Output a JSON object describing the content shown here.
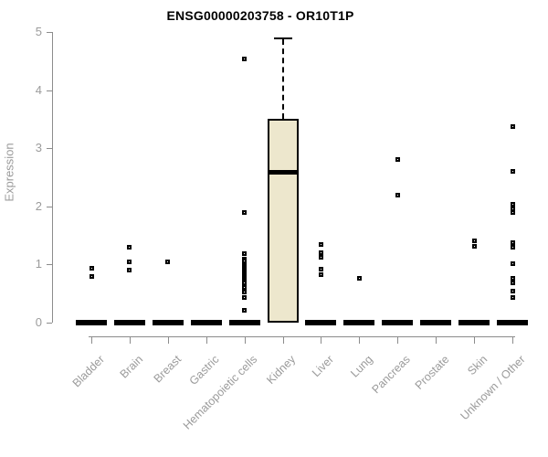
{
  "header": {
    "title": "ENSG00000203758 - OR10T1P"
  },
  "chart_data": {
    "type": "boxplot",
    "title": "ENSG00000203758 - OR10T1P",
    "xlabel": "",
    "ylabel": "Expression",
    "ylim": [
      0,
      5
    ],
    "yticks": [
      0,
      1,
      2,
      3,
      4,
      5
    ],
    "grid": false,
    "legend": "none",
    "categories": [
      "Bladder",
      "Brain",
      "Breast",
      "Gastric",
      "Hematopoietic cells",
      "Kidney",
      "Liver",
      "Lung",
      "Pancreas",
      "Prostate",
      "Skin",
      "Unknown / Other"
    ],
    "boxes": [
      {
        "category": "Bladder",
        "whisker_low": 0,
        "q1": 0,
        "median": 0,
        "q3": 0,
        "whisker_high": 0,
        "outliers": [
          0.94,
          0.79
        ]
      },
      {
        "category": "Brain",
        "whisker_low": 0,
        "q1": 0,
        "median": 0,
        "q3": 0,
        "whisker_high": 0,
        "outliers": [
          1.29,
          1.04,
          0.91
        ]
      },
      {
        "category": "Breast",
        "whisker_low": 0,
        "q1": 0,
        "median": 0,
        "q3": 0,
        "whisker_high": 0,
        "outliers": [
          1.04
        ]
      },
      {
        "category": "Gastric",
        "whisker_low": 0,
        "q1": 0,
        "median": 0,
        "q3": 0,
        "whisker_high": 0,
        "outliers": []
      },
      {
        "category": "Hematopoietic cells",
        "whisker_low": 0,
        "q1": 0,
        "median": 0,
        "q3": 0,
        "whisker_high": 0,
        "outliers": [
          4.53,
          1.89,
          1.18,
          1.1,
          1.06,
          1.02,
          0.99,
          0.96,
          0.93,
          0.9,
          0.87,
          0.84,
          0.81,
          0.78,
          0.75,
          0.72,
          0.68,
          0.64,
          0.61,
          0.52,
          0.43,
          0.21
        ]
      },
      {
        "category": "Kidney",
        "whisker_low": 0,
        "q1": 0,
        "median": 2.59,
        "q3": 3.5,
        "whisker_high": 4.88,
        "outliers": []
      },
      {
        "category": "Liver",
        "whisker_low": 0,
        "q1": 0,
        "median": 0,
        "q3": 0,
        "whisker_high": 0,
        "outliers": [
          1.34,
          1.2,
          1.13,
          0.92,
          0.83
        ]
      },
      {
        "category": "Lung",
        "whisker_low": 0,
        "q1": 0,
        "median": 0,
        "q3": 0,
        "whisker_high": 0,
        "outliers": [
          0.76
        ]
      },
      {
        "category": "Pancreas",
        "whisker_low": 0,
        "q1": 0,
        "median": 0,
        "q3": 0,
        "whisker_high": 0,
        "outliers": [
          2.81,
          2.2
        ]
      },
      {
        "category": "Prostate",
        "whisker_low": 0,
        "q1": 0,
        "median": 0,
        "q3": 0,
        "whisker_high": 0,
        "outliers": []
      },
      {
        "category": "Skin",
        "whisker_low": 0,
        "q1": 0,
        "median": 0,
        "q3": 0,
        "whisker_high": 0,
        "outliers": [
          1.41,
          1.32
        ]
      },
      {
        "category": "Unknown / Other",
        "whisker_low": 0,
        "q1": 0,
        "median": 0,
        "q3": 0,
        "whisker_high": 0,
        "outliers": [
          3.38,
          2.61,
          2.04,
          1.96,
          1.9,
          1.38,
          1.29,
          1.02,
          0.76,
          0.69,
          0.55,
          0.44
        ]
      }
    ],
    "colors": {
      "box_fill": "#EDE7CD",
      "box_border": "#000000",
      "median": "#000000",
      "outlier": "#000000",
      "axis_line": "#8c8c8c",
      "tick_text": "#9b9b9b",
      "title_text": "#000000",
      "background": "#ffffff"
    }
  }
}
